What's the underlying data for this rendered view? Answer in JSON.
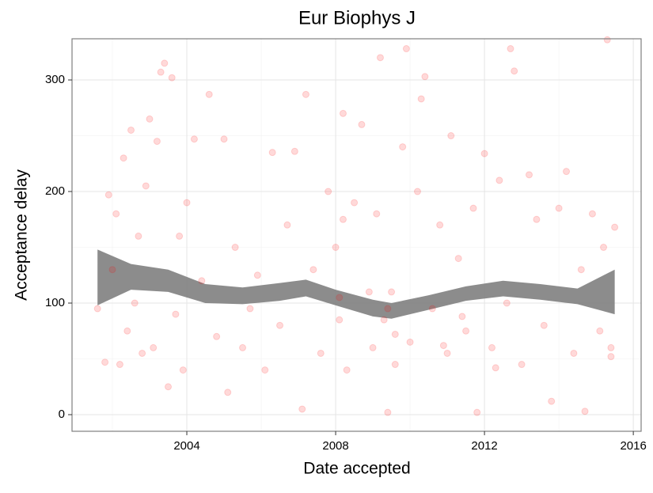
{
  "chart_data": {
    "type": "scatter",
    "title": "Eur Biophys J",
    "x_label": "Date accepted",
    "y_label": "Acceptance delay",
    "xlim": [
      2000.915,
      2016.21
    ],
    "ylim": [
      -14.9,
      336.9
    ],
    "xticks": [
      2004,
      2008,
      2012,
      2016
    ],
    "yticks": [
      0,
      100,
      200,
      300
    ],
    "minor_xticks": [
      2002,
      2006,
      2010,
      2014
    ],
    "minor_yticks": [
      50,
      150,
      250
    ],
    "grid": true,
    "point_color": "#ff0000",
    "x": [
      2001.6,
      2001.8,
      2001.9,
      2002.0,
      2002.1,
      2002.2,
      2002.3,
      2002.4,
      2002.5,
      2002.6,
      2002.7,
      2002.8,
      2002.9,
      2003.0,
      2003.1,
      2003.2,
      2003.3,
      2003.4,
      2003.5,
      2003.6,
      2003.7,
      2003.8,
      2003.9,
      2004.0,
      2004.2,
      2004.4,
      2004.6,
      2004.8,
      2005.0,
      2005.1,
      2005.3,
      2005.5,
      2005.7,
      2005.9,
      2006.1,
      2006.3,
      2006.5,
      2006.7,
      2006.9,
      2007.1,
      2007.2,
      2007.4,
      2007.6,
      2007.8,
      2008.0,
      2008.1,
      2008.2,
      2008.3,
      2008.5,
      2008.7,
      2008.9,
      2009.0,
      2009.1,
      2009.2,
      2009.3,
      2009.4,
      2009.5,
      2009.6,
      2009.8,
      2009.9,
      2010.0,
      2010.2,
      2010.3,
      2010.4,
      2010.6,
      2010.8,
      2011.0,
      2011.1,
      2011.3,
      2011.5,
      2011.7,
      2011.8,
      2012.0,
      2012.2,
      2012.4,
      2012.6,
      2012.7,
      2012.8,
      2013.0,
      2013.2,
      2013.4,
      2013.6,
      2013.8,
      2014.0,
      2014.2,
      2014.4,
      2014.6,
      2014.7,
      2014.9,
      2015.1,
      2015.2,
      2015.3,
      2015.4,
      2015.5,
      2015.4,
      2012.3,
      2008.1,
      2008.2,
      2009.4,
      2009.6,
      2010.9,
      2011.4
    ],
    "y": [
      95,
      47,
      197,
      130,
      180,
      45,
      230,
      75,
      255,
      100,
      160,
      55,
      205,
      265,
      60,
      245,
      307,
      315,
      25,
      302,
      90,
      160,
      40,
      190,
      247,
      120,
      287,
      70,
      247,
      20,
      150,
      60,
      95,
      125,
      40,
      235,
      80,
      170,
      236,
      5,
      287,
      130,
      55,
      200,
      150,
      85,
      270,
      40,
      190,
      260,
      110,
      60,
      180,
      320,
      85,
      2,
      110,
      45,
      240,
      328,
      65,
      200,
      283,
      303,
      95,
      170,
      55,
      250,
      140,
      75,
      185,
      2,
      234,
      60,
      210,
      100,
      328,
      308,
      45,
      215,
      175,
      80,
      12,
      185,
      218,
      55,
      130,
      3,
      180,
      75,
      150,
      336,
      60,
      168,
      52,
      42,
      105,
      175,
      95,
      72,
      62,
      88
    ],
    "band": {
      "color": "#808080",
      "x": [
        2001.6,
        2002.5,
        2003.5,
        2004.5,
        2005.5,
        2006.5,
        2007.2,
        2008.0,
        2009.0,
        2009.5,
        2010.5,
        2011.5,
        2012.5,
        2013.5,
        2014.5,
        2015.5
      ],
      "lower": [
        98,
        112,
        110,
        100,
        99,
        102,
        106,
        98,
        88,
        86,
        94,
        102,
        106,
        103,
        99,
        90
      ],
      "upper": [
        148,
        135,
        130,
        117,
        114,
        118,
        121,
        112,
        103,
        100,
        107,
        115,
        120,
        117,
        113,
        130
      ]
    }
  }
}
